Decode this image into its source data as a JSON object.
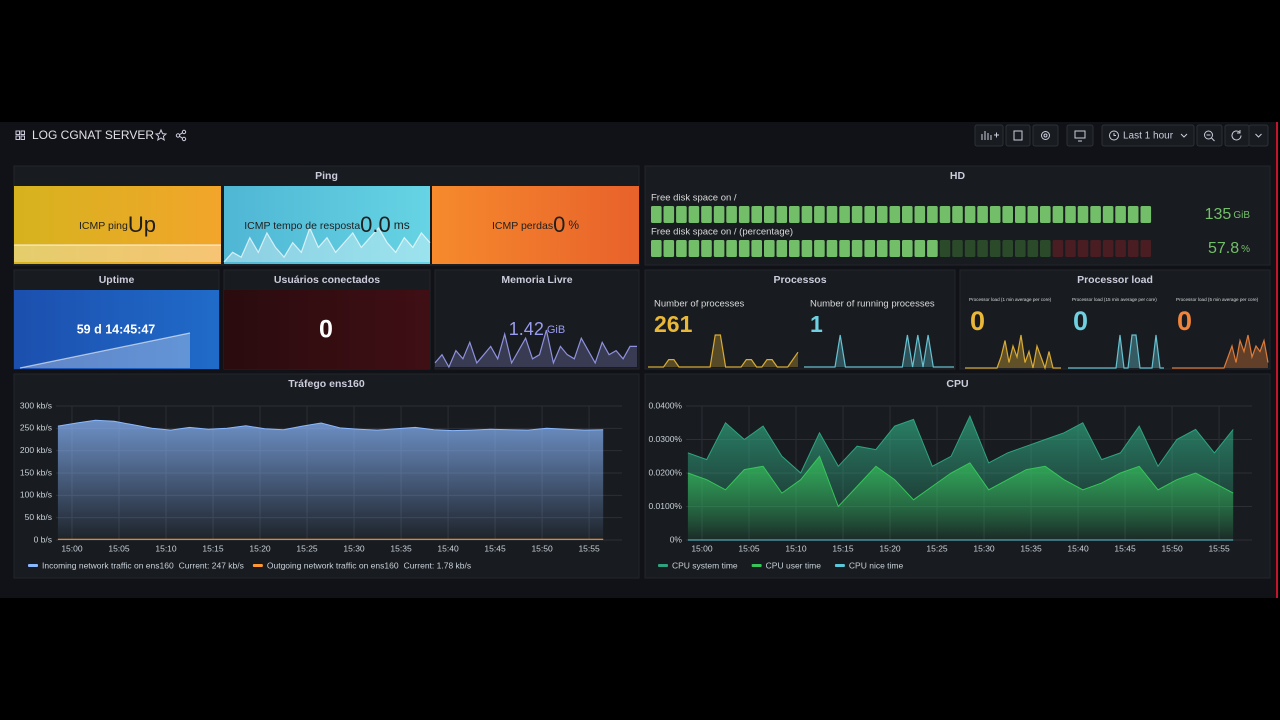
{
  "header": {
    "title": "LOG CGNAT SERVER",
    "time_range": "Last 1 hour"
  },
  "ping": {
    "title": "Ping",
    "stats": [
      {
        "label": "ICMP ping",
        "value": "Up",
        "sparkline": [
          1,
          1,
          1,
          1,
          1,
          1,
          1,
          1
        ]
      },
      {
        "label": "ICMP tempo de resposta",
        "value": 0,
        "value_label": "0.0",
        "unit": "ms",
        "sparkline": [
          0.015,
          0.025,
          0.02,
          0.04,
          0.025,
          0.045,
          0.03,
          0.02,
          0.035,
          0.025,
          0.05,
          0.03,
          0.04,
          0.025,
          0.035,
          0.045,
          0.03,
          0.04,
          0.05,
          0.035,
          0.025,
          0.04,
          0.03,
          0.045,
          0.035
        ]
      },
      {
        "label": "ICMP perdas",
        "value": 0,
        "unit": "%"
      }
    ]
  },
  "hd": {
    "title": "HD",
    "color": "#73bf69",
    "gauges": [
      {
        "label": "Free disk space on /",
        "value": 135,
        "unit": "GiB"
      },
      {
        "label": "Free disk space on / (percentage)",
        "value": 57.8,
        "unit": "%"
      }
    ]
  },
  "uptime": {
    "title": "Uptime",
    "value": "59 d 14:45:47",
    "sparkline": [
      5147147,
      5150747
    ]
  },
  "users": {
    "title": "Usuários conectados",
    "value": 0
  },
  "memory": {
    "title": "Memoria Livre",
    "value": 1.42,
    "unit": "GiB",
    "color": "#9a9cf0",
    "sparkline": [
      1.38,
      1.4,
      1.37,
      1.41,
      1.39,
      1.43,
      1.38,
      1.4,
      1.42,
      1.39,
      1.45,
      1.38,
      1.41,
      1.44,
      1.39,
      1.4,
      1.46,
      1.38,
      1.42,
      1.4,
      1.39,
      1.44,
      1.41,
      1.38,
      1.43,
      1.4,
      1.41,
      1.39,
      1.42,
      1.42
    ]
  },
  "processes": {
    "title": "Processos",
    "stats": [
      {
        "label": "Number of processes",
        "value": 261,
        "color": "#eab839",
        "sparkline": [
          255,
          255,
          255,
          255,
          258,
          258,
          255,
          255,
          255,
          255,
          255,
          255,
          255,
          268,
          268,
          255,
          255,
          255,
          255,
          258,
          258,
          255,
          255,
          258,
          258,
          255,
          255,
          255,
          258,
          261
        ]
      },
      {
        "label": "Number of running processes",
        "value": 1,
        "color": "#6ed0e0",
        "sparkline": [
          1,
          1,
          1,
          1,
          1,
          1,
          1,
          3,
          1,
          1,
          1,
          1,
          1,
          1,
          1,
          1,
          1,
          1,
          1,
          1,
          3,
          1,
          3,
          1,
          3,
          1,
          1,
          1,
          1,
          1
        ]
      }
    ]
  },
  "load": {
    "title": "Processor load",
    "stats": [
      {
        "label": "Processor load (1 min average per core)",
        "value": 0,
        "color": "#eab839",
        "sparkline": [
          0,
          0,
          0,
          0,
          0,
          0,
          0,
          0,
          0,
          0.02,
          0.05,
          0.01,
          0.04,
          0.02,
          0.06,
          0.01,
          0.03,
          0,
          0.04,
          0.02,
          0,
          0.03,
          0,
          0,
          0
        ]
      },
      {
        "label": "Processor load (15 min average per core)",
        "value": 0,
        "color": "#6ed0e0",
        "sparkline": [
          0,
          0,
          0,
          0,
          0,
          0,
          0,
          0,
          0,
          0,
          0,
          0,
          0,
          0.02,
          0,
          0,
          0.02,
          0.02,
          0,
          0,
          0,
          0,
          0.02,
          0,
          0
        ]
      },
      {
        "label": "Processor load (5 min average per core)",
        "value": 0,
        "color": "#ef843c",
        "sparkline": [
          0,
          0,
          0,
          0,
          0,
          0,
          0,
          0,
          0,
          0,
          0,
          0,
          0,
          0,
          0.02,
          0.04,
          0.01,
          0.05,
          0.03,
          0.06,
          0.02,
          0.04,
          0.03,
          0.05,
          0.01
        ]
      }
    ]
  },
  "charts": [
    {
      "type": "area",
      "title": "Tráfego ens160",
      "x": [
        898.5,
        900.5,
        902.5,
        904.5,
        906.5,
        908.5,
        910.5,
        912.5,
        914.5,
        916.5,
        918.5,
        920.5,
        922.5,
        924.5,
        926.5,
        928.5,
        930.5,
        932.5,
        934.5,
        936.5,
        938.5,
        940.5,
        942.5,
        944.5,
        946.5,
        948.5,
        950.5,
        952.5,
        954.5,
        956.5
      ],
      "xlim": [
        898.3,
        958.5
      ],
      "xticks": [
        {
          "value": 900,
          "label": "15:00"
        },
        {
          "value": 905,
          "label": "15:05"
        },
        {
          "value": 910,
          "label": "15:10"
        },
        {
          "value": 915,
          "label": "15:15"
        },
        {
          "value": 920,
          "label": "15:20"
        },
        {
          "value": 925,
          "label": "15:25"
        },
        {
          "value": 930,
          "label": "15:30"
        },
        {
          "value": 935,
          "label": "15:35"
        },
        {
          "value": 940,
          "label": "15:40"
        },
        {
          "value": 945,
          "label": "15:45"
        },
        {
          "value": 950,
          "label": "15:50"
        },
        {
          "value": 955,
          "label": "15:55"
        }
      ],
      "ylim": [
        0,
        300
      ],
      "yticks": [
        {
          "value": 0,
          "label": "0 b/s"
        },
        {
          "value": 50,
          "label": "50 kb/s"
        },
        {
          "value": 100,
          "label": "100 kb/s"
        },
        {
          "value": 150,
          "label": "150 kb/s"
        },
        {
          "value": 200,
          "label": "200 kb/s"
        },
        {
          "value": 250,
          "label": "250 kb/s"
        },
        {
          "value": 300,
          "label": "300 kb/s"
        }
      ],
      "grid": true,
      "series": [
        {
          "name": "Incoming network traffic on ens160",
          "current": "Current: 247 kb/s",
          "color": "#8ab8ff",
          "values": [
            255,
            262,
            268,
            266,
            258,
            250,
            246,
            252,
            248,
            250,
            256,
            249,
            247,
            255,
            262,
            251,
            248,
            246,
            249,
            252,
            247,
            245,
            246,
            248,
            247,
            246,
            250,
            248,
            246,
            247
          ]
        },
        {
          "name": "Outgoing network traffic on ens160",
          "current": "Current: 1.78 kb/s",
          "color": "#ff9830",
          "values": [
            1.76,
            1.8,
            1.78,
            1.76,
            1.8,
            1.78,
            1.76,
            1.8,
            1.78,
            1.76,
            1.8,
            1.78,
            1.76,
            1.8,
            1.78,
            1.76,
            1.8,
            1.78,
            1.76,
            1.8,
            1.78,
            1.76,
            1.8,
            1.78,
            1.76,
            1.8,
            1.78,
            1.76,
            1.8,
            1.78
          ]
        }
      ]
    },
    {
      "type": "area",
      "title": "CPU",
      "x": [
        898.5,
        900.5,
        902.5,
        904.5,
        906.5,
        908.5,
        910.5,
        912.5,
        914.5,
        916.5,
        918.5,
        920.5,
        922.5,
        924.5,
        926.5,
        928.5,
        930.5,
        932.5,
        934.5,
        936.5,
        938.5,
        940.5,
        942.5,
        944.5,
        946.5,
        948.5,
        950.5,
        952.5,
        954.5,
        956.5
      ],
      "xlim": [
        898.3,
        958.5
      ],
      "xticks": [
        {
          "value": 900,
          "label": "15:00"
        },
        {
          "value": 905,
          "label": "15:05"
        },
        {
          "value": 910,
          "label": "15:10"
        },
        {
          "value": 915,
          "label": "15:15"
        },
        {
          "value": 920,
          "label": "15:20"
        },
        {
          "value": 925,
          "label": "15:25"
        },
        {
          "value": 930,
          "label": "15:30"
        },
        {
          "value": 935,
          "label": "15:35"
        },
        {
          "value": 940,
          "label": "15:40"
        },
        {
          "value": 945,
          "label": "15:45"
        },
        {
          "value": 950,
          "label": "15:50"
        },
        {
          "value": 955,
          "label": "15:55"
        }
      ],
      "ylim": [
        0,
        0.04
      ],
      "yticks": [
        {
          "value": 0,
          "label": "0%"
        },
        {
          "value": 0.01,
          "label": "0.0100%"
        },
        {
          "value": 0.02,
          "label": "0.0200%"
        },
        {
          "value": 0.03,
          "label": "0.0300%"
        },
        {
          "value": 0.04,
          "label": "0.0400%"
        }
      ],
      "grid": true,
      "series": [
        {
          "name": "CPU system time",
          "color": "#2fa37e",
          "values": [
            0.026,
            0.024,
            0.035,
            0.03,
            0.034,
            0.025,
            0.02,
            0.032,
            0.022,
            0.028,
            0.027,
            0.034,
            0.036,
            0.022,
            0.025,
            0.037,
            0.023,
            0.026,
            0.028,
            0.03,
            0.032,
            0.035,
            0.024,
            0.026,
            0.034,
            0.022,
            0.03,
            0.033,
            0.026,
            0.033
          ]
        },
        {
          "name": "CPU user time",
          "color": "#37c45b",
          "values": [
            0.02,
            0.018,
            0.015,
            0.021,
            0.022,
            0.014,
            0.018,
            0.025,
            0.01,
            0.016,
            0.022,
            0.018,
            0.012,
            0.016,
            0.02,
            0.023,
            0.015,
            0.018,
            0.021,
            0.022,
            0.018,
            0.015,
            0.017,
            0.02,
            0.022,
            0.015,
            0.018,
            0.02,
            0.017,
            0.014
          ]
        },
        {
          "name": "CPU nice time",
          "color": "#5ac8d8",
          "values": [
            0,
            0,
            0,
            0,
            0,
            0,
            0,
            0,
            0,
            0,
            0,
            0,
            0,
            0,
            0,
            0,
            0,
            0,
            0,
            0,
            0,
            0,
            0,
            0,
            0,
            0,
            0,
            0,
            0,
            0
          ]
        }
      ]
    }
  ]
}
